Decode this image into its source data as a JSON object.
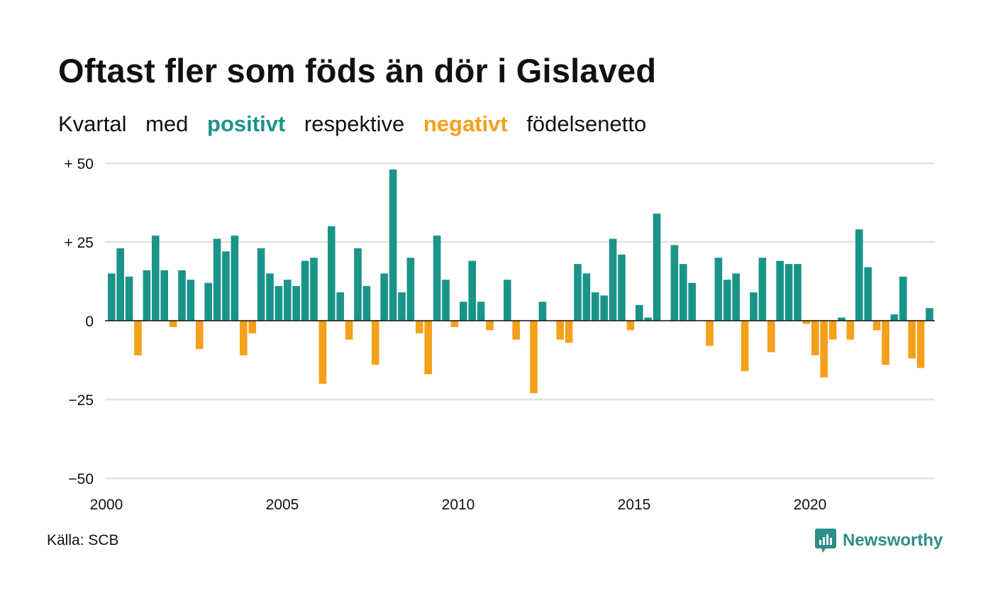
{
  "header": {
    "title": "Oftast fler som föds än dör i Gislaved",
    "subtitle": {
      "part1": "Kvartal",
      "part2": "med",
      "positive": "positivt",
      "part3": "respektive",
      "negative": "negativt",
      "part4": "födelsenetto"
    }
  },
  "footer": {
    "source": "Källa: SCB",
    "brand": "Newsworthy",
    "brand_icon": "bar-chart-logo-icon"
  },
  "colors": {
    "positive": "#1a9488",
    "negative": "#f5a01a",
    "grid": "#e2e2e2",
    "axis": "#111111",
    "brand": "#2d8d88"
  },
  "chart_data": {
    "type": "bar",
    "title": "Oftast fler som föds än dör i Gislaved",
    "subtitle": "Kvartal med positivt respektive negativt födelsenetto",
    "xlabel": "",
    "ylabel": "",
    "x_start": 2000,
    "x_end": 2023.75,
    "ylim": [
      -50,
      50
    ],
    "y_ticks": [
      50,
      25,
      0,
      -25,
      -50
    ],
    "y_tick_labels": [
      "+ 50",
      "+ 25",
      "0",
      "−25",
      "−50"
    ],
    "x_ticks": [
      2000,
      2005,
      2010,
      2015,
      2020
    ],
    "x_tick_labels": [
      "2000",
      "2005",
      "2010",
      "2015",
      "2020"
    ],
    "grid": true,
    "legend": "inline-subtitle",
    "series": [
      {
        "values": [
          15,
          23,
          14,
          -11,
          16,
          27,
          16,
          -2,
          16,
          13,
          -9,
          12,
          26,
          22,
          27,
          -11,
          -4,
          23,
          15,
          11,
          13,
          11,
          19,
          20,
          -20,
          30,
          9,
          -6,
          23,
          11,
          -14,
          15,
          48,
          9,
          20,
          -4,
          -17,
          27,
          13,
          -2,
          6,
          19,
          6,
          -3,
          0,
          13,
          -6,
          0,
          -23,
          6,
          0,
          -6,
          -7,
          18,
          15,
          9,
          8,
          26,
          21,
          -3,
          5,
          1,
          34,
          0,
          24,
          18,
          12,
          0,
          -8,
          20,
          13,
          15,
          -16,
          9,
          20,
          -10,
          19,
          18,
          18,
          -1,
          -11,
          -18,
          -6,
          1,
          -6,
          29,
          17,
          -3,
          -14,
          2,
          14,
          -12,
          -15,
          4
        ]
      }
    ]
  }
}
